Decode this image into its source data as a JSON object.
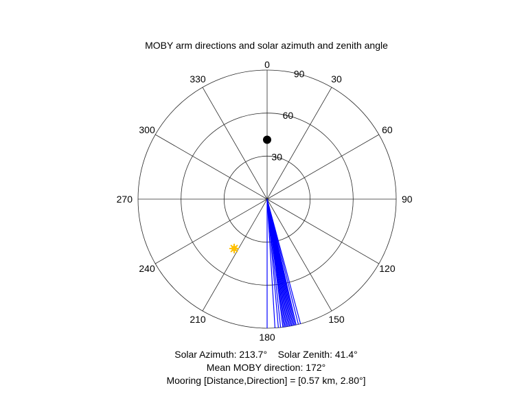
{
  "chart_data": {
    "type": "polar",
    "title": "MOBY arm directions and solar azimuth and zenith angle",
    "angle_ticks": [
      "0",
      "30",
      "60",
      "90",
      "120",
      "150",
      "180",
      "210",
      "240",
      "270",
      "300",
      "330"
    ],
    "radial_ticks": [
      "30",
      "60",
      "90"
    ],
    "radial_max": 90,
    "radial_rings": [
      30,
      60,
      90
    ],
    "grid": true,
    "points": [
      {
        "azimuth": 0,
        "zenith": 41.4,
        "marker": "filled-circle",
        "color": "#000000"
      },
      {
        "azimuth": 213.7,
        "zenith": 41.4,
        "marker": "sun-star",
        "color": "#FFC000"
      }
    ],
    "arm_direction_lines": {
      "color": "#0000FF",
      "length": 90,
      "directions": [
        180,
        176.5,
        175,
        174,
        173,
        172.5,
        172,
        171.5,
        171,
        170.5,
        170,
        169.5,
        169,
        168.5,
        168,
        167.5,
        167,
        166,
        165
      ]
    },
    "footer": {
      "solar": "Solar Azimuth: 213.7°    Solar Zenith: 41.4°",
      "mean_direction": "Mean MOBY direction: 172°",
      "mooring": "Mooring [Distance,Direction] = [0.57 km, 2.80°]"
    }
  }
}
